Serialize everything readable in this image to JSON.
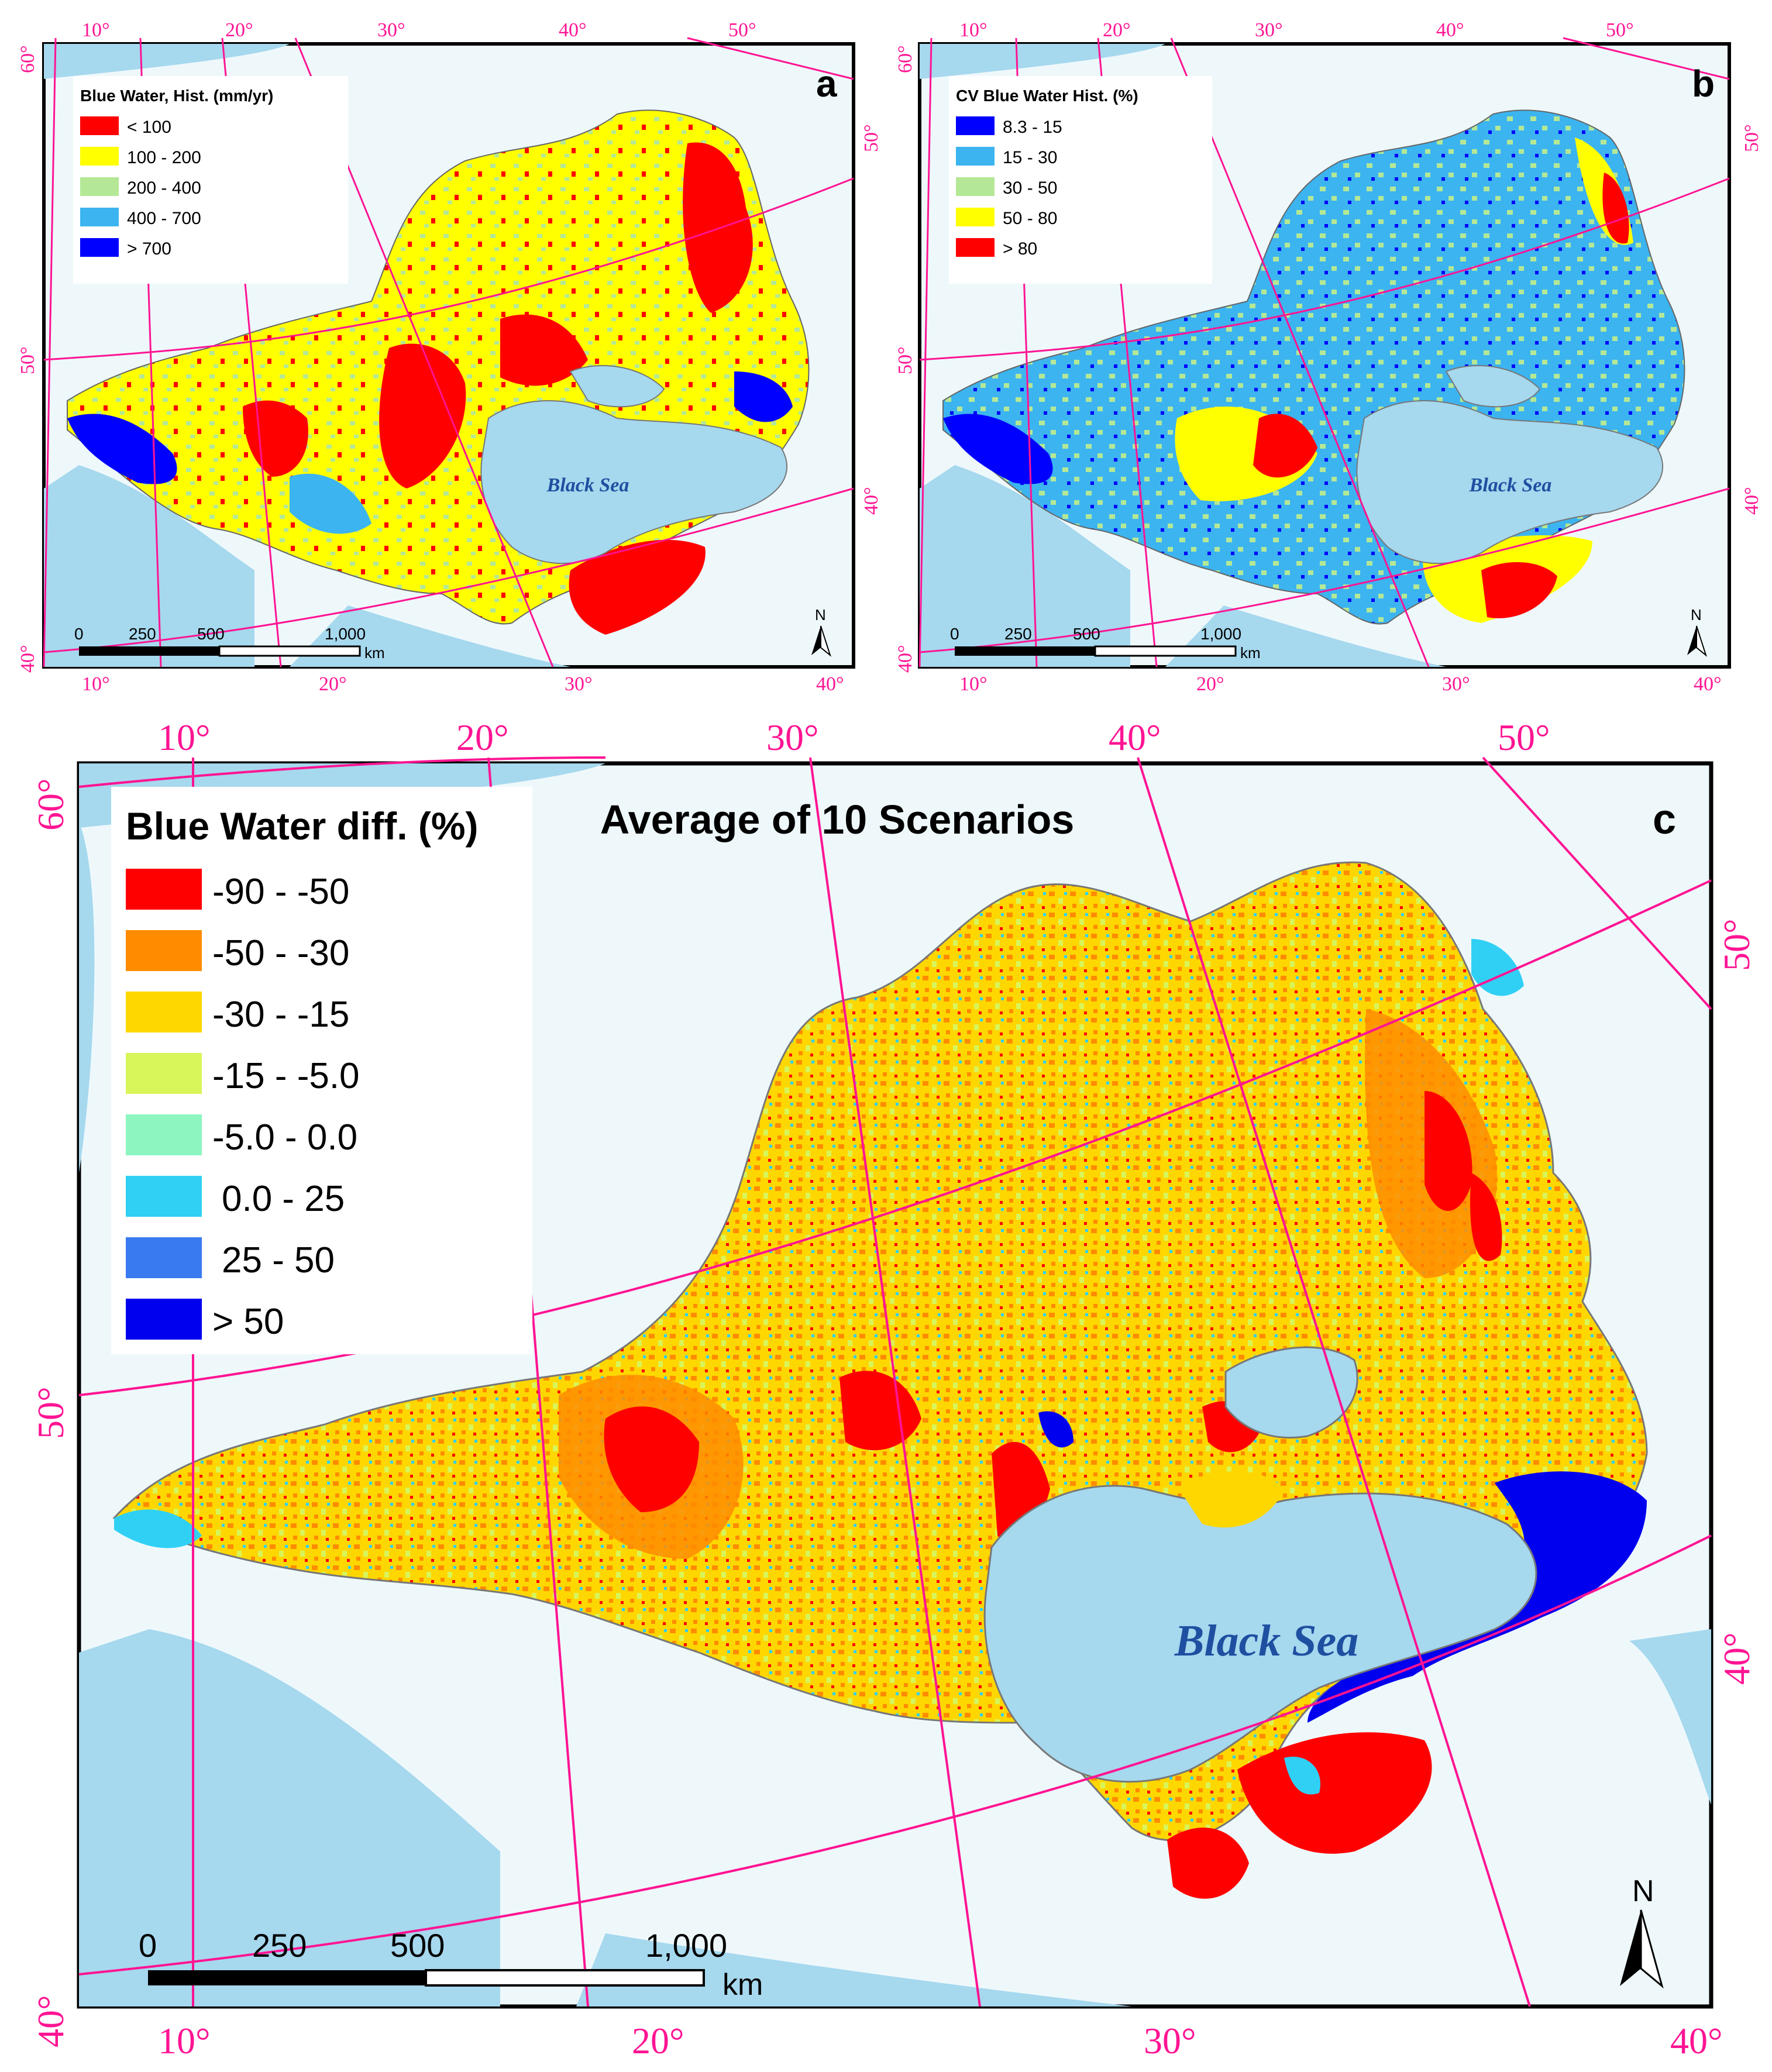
{
  "panels": [
    {
      "id": "a",
      "letter": "a",
      "legend": {
        "title": "Blue Water, Hist. (mm/yr)",
        "items": [
          {
            "label": "< 100",
            "color": "#ff0000"
          },
          {
            "label": "100 - 200",
            "color": "#ffff00"
          },
          {
            "label": "200 - 400",
            "color": "#b4e896"
          },
          {
            "label": "400 - 700",
            "color": "#3cb4f0"
          },
          {
            "label": "> 700",
            "color": "#0000ff"
          }
        ]
      },
      "sea_label": "Black Sea",
      "scale": {
        "ticks": [
          "0",
          "250",
          "500",
          "1,000"
        ],
        "unit": "km"
      },
      "north": "N",
      "graticule": {
        "top": [
          "10°",
          "20°",
          "30°",
          "40°",
          "50°"
        ],
        "bottom": [
          "10°",
          "20°",
          "30°",
          "40°"
        ],
        "left": [
          "60°",
          "50°",
          "40°"
        ],
        "right": [
          "50°",
          "40°"
        ]
      }
    },
    {
      "id": "b",
      "letter": "b",
      "legend": {
        "title": "CV Blue Water Hist. (%)",
        "items": [
          {
            "label": "8.3 - 15",
            "color": "#0000ff"
          },
          {
            "label": "15 - 30",
            "color": "#3cb4f0"
          },
          {
            "label": "30 - 50",
            "color": "#b4e896"
          },
          {
            "label": "50 - 80",
            "color": "#ffff00"
          },
          {
            "label": "> 80",
            "color": "#ff0000"
          }
        ]
      },
      "sea_label": "Black Sea",
      "scale": {
        "ticks": [
          "0",
          "250",
          "500",
          "1,000"
        ],
        "unit": "km"
      },
      "north": "N",
      "graticule": {
        "top": [
          "10°",
          "20°",
          "30°",
          "40°",
          "50°"
        ],
        "bottom": [
          "10°",
          "20°",
          "30°",
          "40°"
        ],
        "left": [
          "60°",
          "50°",
          "40°"
        ],
        "right": [
          "50°",
          "40°"
        ]
      }
    },
    {
      "id": "c",
      "letter": "c",
      "title": "Average of 10 Scenarios",
      "legend": {
        "title": "Blue Water diff. (%)",
        "items": [
          {
            "label": "-90 - -50",
            "color": "#ff0000"
          },
          {
            "label": "-50 - -30",
            "color": "#ff8c00"
          },
          {
            "label": "-30 - -15",
            "color": "#ffd700"
          },
          {
            "label": "-15 - -5.0",
            "color": "#d8f55a"
          },
          {
            "label": "-5.0 - 0.0",
            "color": "#8cf5c0"
          },
          {
            "label": "0.0 - 25",
            "color": "#30d0f5"
          },
          {
            "label": "25 - 50",
            "color": "#3a7af0"
          },
          {
            "label": "> 50",
            "color": "#0000ee"
          }
        ]
      },
      "sea_label": "Black Sea",
      "scale": {
        "ticks": [
          "0",
          "250",
          "500",
          "1,000"
        ],
        "unit": "km"
      },
      "north": "N",
      "graticule": {
        "top": [
          "10°",
          "20°",
          "30°",
          "40°",
          "50°"
        ],
        "bottom": [
          "10°",
          "20°",
          "30°",
          "40°"
        ],
        "left": [
          "60°",
          "50°",
          "40°"
        ],
        "right": [
          "50°",
          "40°"
        ]
      }
    }
  ],
  "colors": {
    "sea": "#a6d8ee",
    "land_background": "#eef8fb",
    "border": "#888888",
    "graticule": "#ff1493"
  }
}
